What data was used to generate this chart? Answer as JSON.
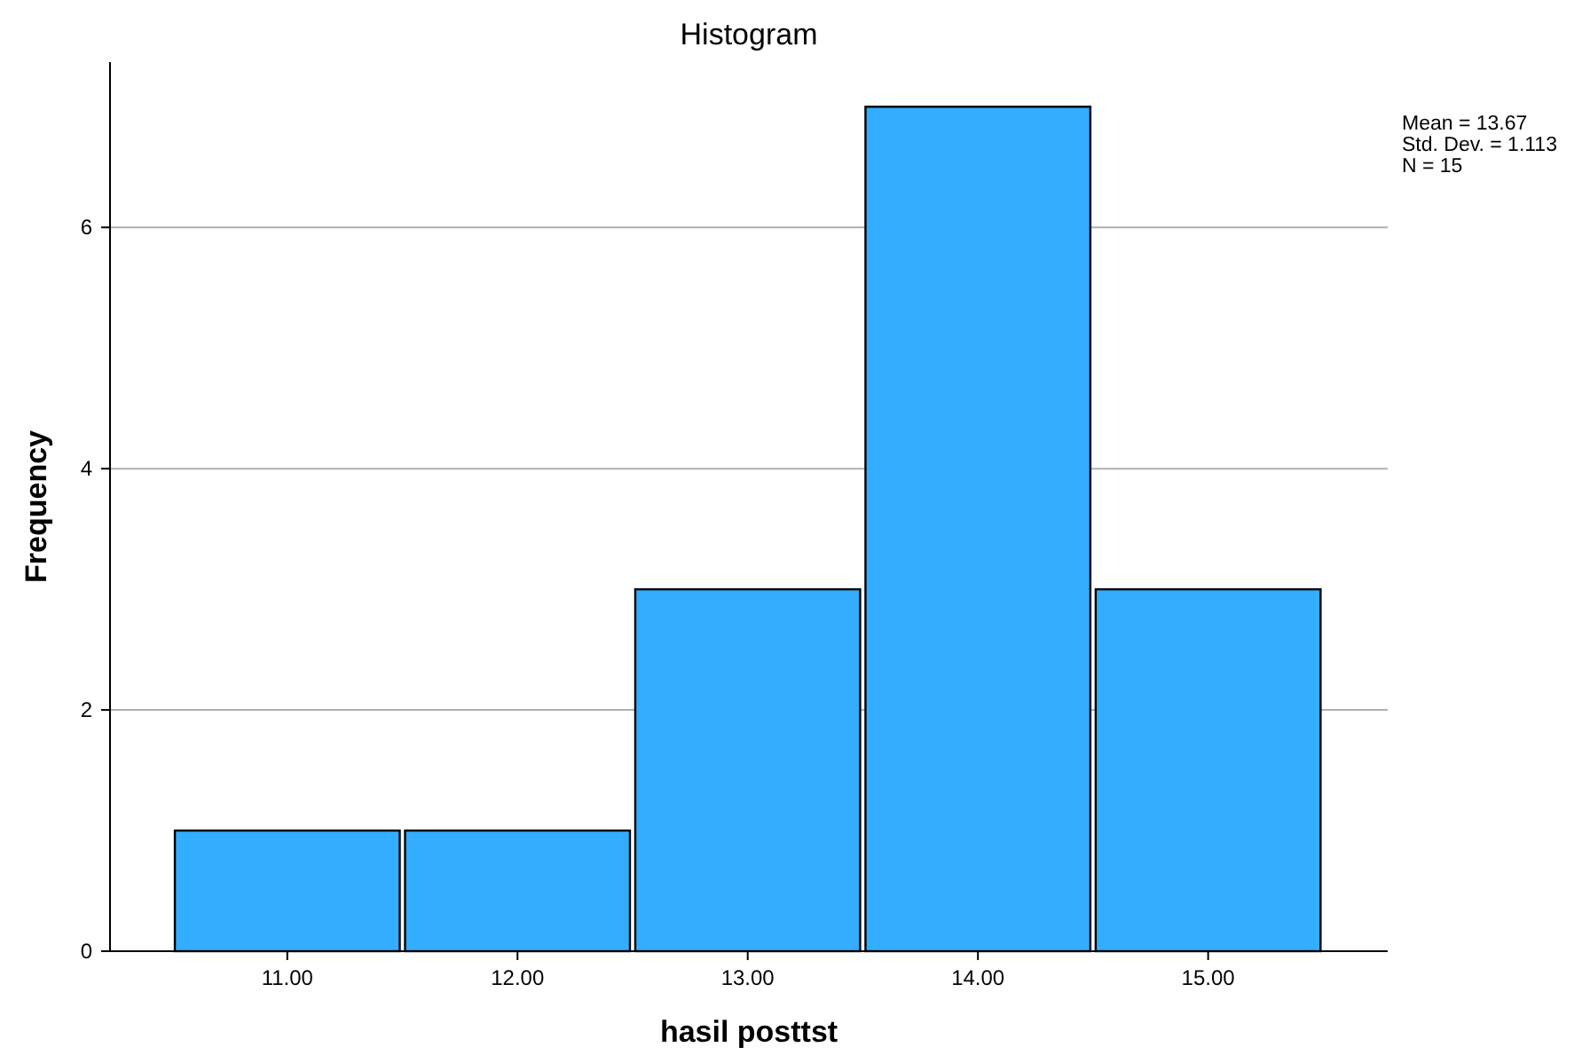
{
  "chart_data": {
    "type": "histogram",
    "title": "Histogram",
    "xlabel": "hasil posttst",
    "ylabel": "Frequency",
    "bins": [
      10.5,
      11.5,
      12.5,
      13.5,
      14.5,
      15.5
    ],
    "values": [
      1,
      1,
      3,
      7,
      3
    ],
    "color": "#33adff",
    "xlim": [
      10.23,
      15.78
    ],
    "xticks": [
      {
        "value": 11,
        "label": "11.00"
      },
      {
        "value": 12,
        "label": "12.00"
      },
      {
        "value": 13,
        "label": "13.00"
      },
      {
        "value": 14,
        "label": "14.00"
      },
      {
        "value": 15,
        "label": "15.00"
      }
    ],
    "ylim": [
      0,
      7.37
    ],
    "yticks": [
      0,
      2,
      4,
      6
    ],
    "grid": "y",
    "annotations": [
      "Mean = 13.67",
      "Std. Dev. = 1.113",
      "N = 15"
    ]
  }
}
